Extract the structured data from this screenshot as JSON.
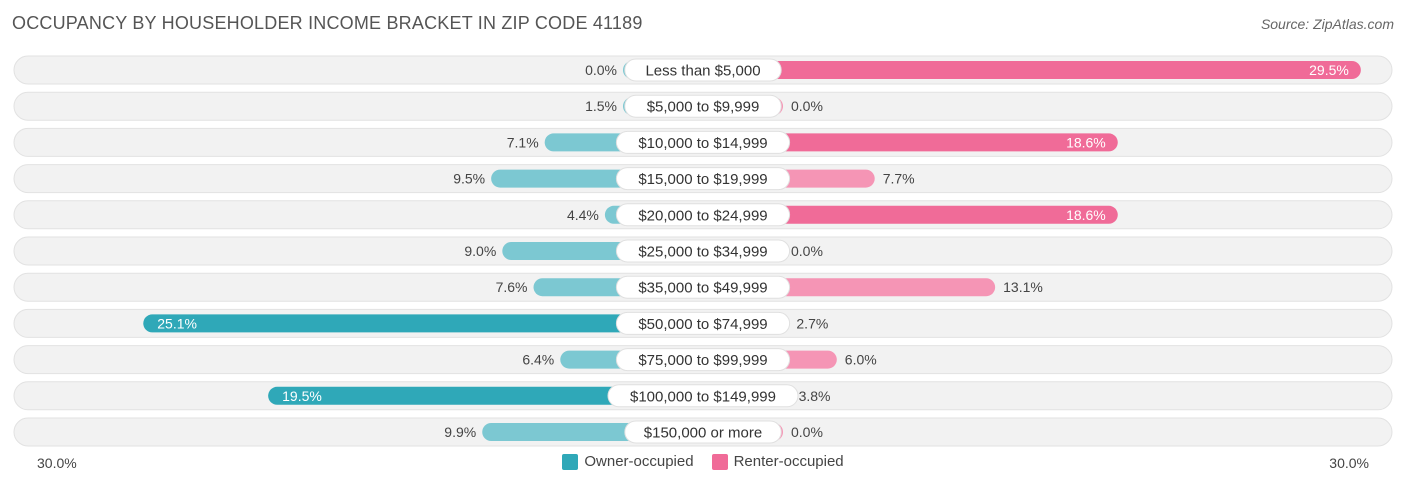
{
  "header": {
    "title": "OCCUPANCY BY HOUSEHOLDER INCOME BRACKET IN ZIP CODE 41189",
    "source": "Source: ZipAtlas.com"
  },
  "colors": {
    "owner": "#7cc8d2",
    "owner_strong": "#2fa8b8",
    "renter": "#f595b5",
    "renter_strong": "#f06b98",
    "track": "#f0f0f0"
  },
  "chart_data": {
    "type": "bar",
    "orientation": "horizontal-diverging",
    "title": "OCCUPANCY BY HOUSEHOLDER INCOME BRACKET IN ZIP CODE 41189",
    "categories": [
      "Less than $5,000",
      "$5,000 to $9,999",
      "$10,000 to $14,999",
      "$15,000 to $19,999",
      "$20,000 to $24,999",
      "$25,000 to $34,999",
      "$35,000 to $49,999",
      "$50,000 to $74,999",
      "$75,000 to $99,999",
      "$100,000 to $149,999",
      "$150,000 or more"
    ],
    "series": [
      {
        "name": "Owner-occupied",
        "values": [
          0.0,
          1.5,
          7.1,
          9.5,
          4.4,
          9.0,
          7.6,
          25.1,
          6.4,
          19.5,
          9.9
        ],
        "labels": [
          "0.0%",
          "1.5%",
          "7.1%",
          "9.5%",
          "4.4%",
          "9.0%",
          "7.6%",
          "25.1%",
          "6.4%",
          "19.5%",
          "9.9%"
        ]
      },
      {
        "name": "Renter-occupied",
        "values": [
          29.5,
          0.0,
          18.6,
          7.7,
          18.6,
          0.0,
          13.1,
          2.7,
          6.0,
          3.8,
          0.0
        ],
        "labels": [
          "29.5%",
          "0.0%",
          "18.6%",
          "7.7%",
          "18.6%",
          "0.0%",
          "13.1%",
          "2.7%",
          "6.0%",
          "3.8%",
          "0.0%"
        ]
      }
    ],
    "xlim": [
      -30,
      30
    ],
    "axis_labels": {
      "left": "30.0%",
      "right": "30.0%"
    },
    "legend": [
      "Owner-occupied",
      "Renter-occupied"
    ]
  }
}
